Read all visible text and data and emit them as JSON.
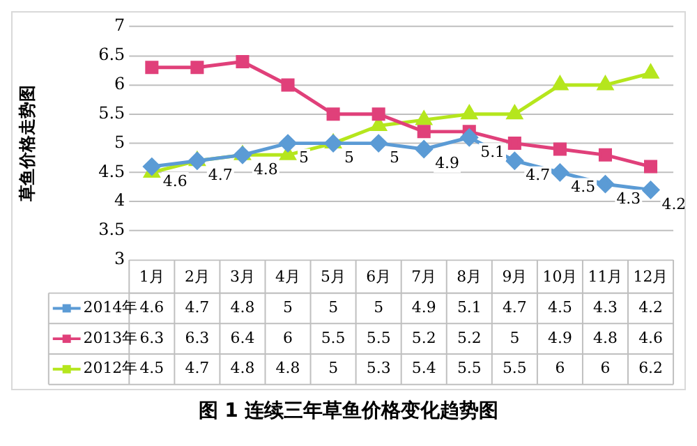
{
  "chart_data": {
    "type": "line",
    "title": "图 1 连续三年草鱼价格变化趋势图",
    "ylabel": "草鱼价格走势图",
    "categories": [
      "1月",
      "2月",
      "3月",
      "4月",
      "5月",
      "6月",
      "7月",
      "8月",
      "9月",
      "10月",
      "11月",
      "12月"
    ],
    "series": [
      {
        "name": "2014年",
        "color": "#5b9bd5",
        "marker": "diamond",
        "values": [
          4.6,
          4.7,
          4.8,
          5,
          5,
          5,
          4.9,
          5.1,
          4.7,
          4.5,
          4.3,
          4.2
        ]
      },
      {
        "name": "2013年",
        "color": "#e0407a",
        "marker": "square",
        "values": [
          6.3,
          6.3,
          6.4,
          6,
          5.5,
          5.5,
          5.2,
          5.2,
          5,
          4.9,
          4.8,
          4.6
        ]
      },
      {
        "name": "2012年",
        "color": "#b5e61d",
        "marker": "triangle",
        "values": [
          4.5,
          4.7,
          4.8,
          4.8,
          5,
          5.3,
          5.4,
          5.5,
          5.5,
          6,
          6,
          6.2
        ]
      }
    ],
    "annotations": [
      {
        "text": "4.6",
        "x": "1月",
        "y": 4.6
      },
      {
        "text": "4.7",
        "x": "2月",
        "y": 4.7
      },
      {
        "text": "4.8",
        "x": "3月",
        "y": 4.8
      },
      {
        "text": "5",
        "x": "4月",
        "y": 5
      },
      {
        "text": "5",
        "x": "5月",
        "y": 5
      },
      {
        "text": "5",
        "x": "6月",
        "y": 5
      },
      {
        "text": "4.9",
        "x": "7月",
        "y": 4.9
      },
      {
        "text": "5.1",
        "x": "8月",
        "y": 5.1
      },
      {
        "text": "4.7",
        "x": "9月",
        "y": 4.7
      },
      {
        "text": "4.5",
        "x": "10月",
        "y": 4.5
      },
      {
        "text": "4.3",
        "x": "11月",
        "y": 4.3
      },
      {
        "text": "4.2",
        "x": "12月",
        "y": 4.2
      }
    ],
    "ylim": [
      3,
      7
    ],
    "yticks": [
      3,
      3.5,
      4,
      4.5,
      5,
      5.5,
      6,
      6.5,
      7
    ],
    "grid": "y",
    "legend": "bottom",
    "data_labels": true
  }
}
